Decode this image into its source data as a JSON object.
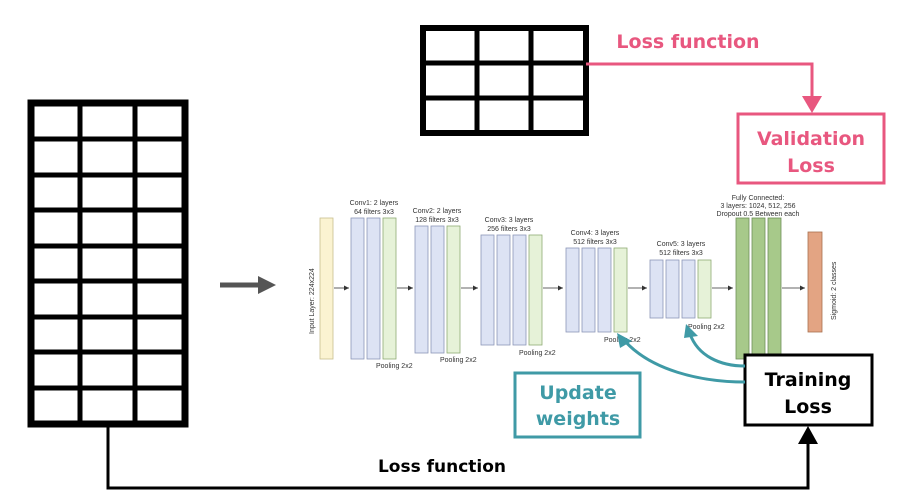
{
  "colors": {
    "pink": "#e8577f",
    "teal": "#3f9aa6",
    "black": "#000000",
    "input_layer": "#fbf3d1",
    "conv_block": "#dde3f4",
    "pool_block": "#e6f2d8",
    "fc_block": "#a7c98a",
    "output_block": "#e3a483"
  },
  "top_loss_label": "Loss function",
  "bottom_loss_label": "Loss function",
  "validation_box": {
    "line1": "Validation",
    "line2": "Loss"
  },
  "training_box": {
    "line1": "Training",
    "line2": "Loss"
  },
  "update_box": {
    "line1": "Update",
    "line2": "weights"
  },
  "network": {
    "input_label": "Input Layer: 224x224",
    "conv1": {
      "line1": "Conv1: 2 layers",
      "line2": "64 filters 3x3"
    },
    "conv2": {
      "line1": "Conv2: 2 layers",
      "line2": "128 filters 3x3"
    },
    "conv3": {
      "line1": "Conv3: 3 layers",
      "line2": "256 filters 3x3"
    },
    "conv4": {
      "line1": "Conv4: 3 layers",
      "line2": "512 filters 3x3"
    },
    "conv5": {
      "line1": "Conv5: 3 layers",
      "line2": "512 filters 3x3"
    },
    "pool1": "Pooling 2x2",
    "pool2": "Pooling 2x2",
    "pool3": "Pooling 2x2",
    "pool4": "Pooling 2x2",
    "pool5": "Pooling 2x2",
    "fc": {
      "line1": "Fully Connected:",
      "line2": "3 layers: 1024, 512, 256",
      "line3": "Dropout 0.5 Between each"
    },
    "output_label": "Sigmoid: 2 classes"
  }
}
